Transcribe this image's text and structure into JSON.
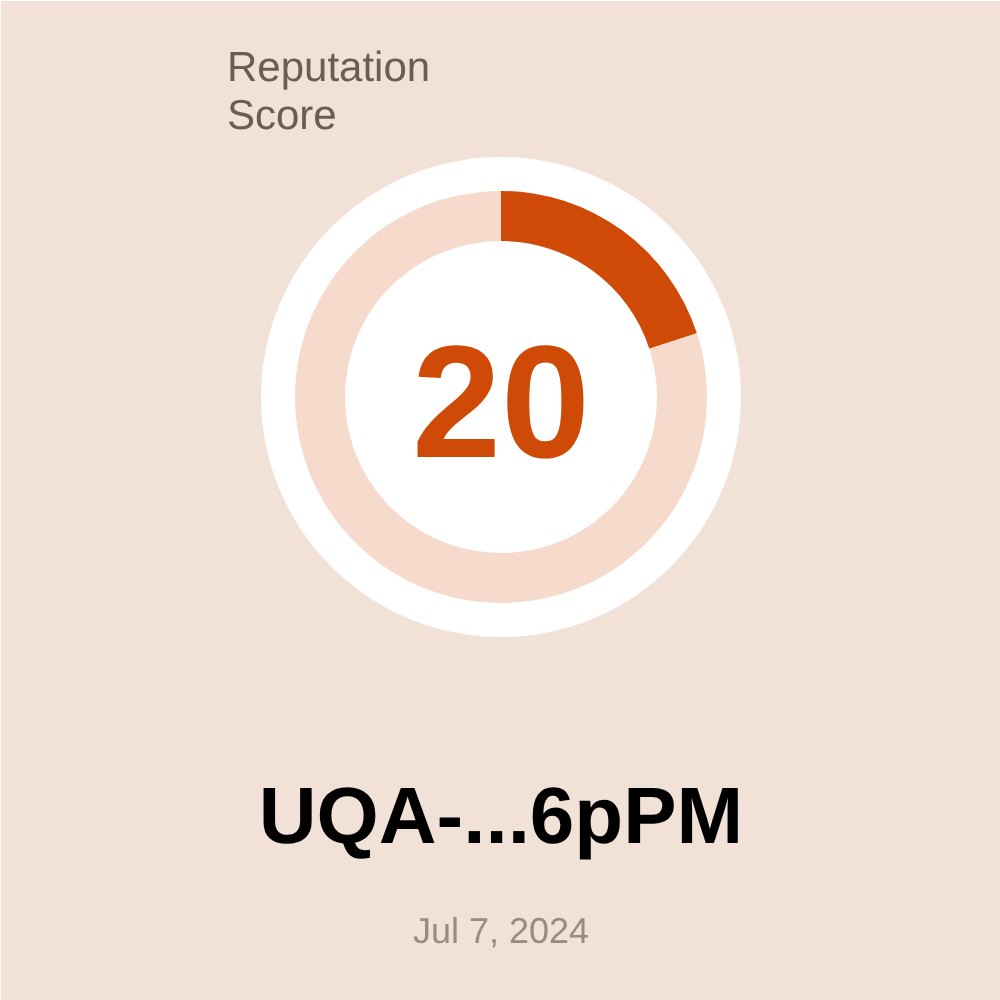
{
  "chart_data": {
    "type": "donut",
    "title": "Reputation Score",
    "categories": [
      null,
      null
    ],
    "values": [
      20,
      80
    ],
    "colors": [
      "#cf4a07",
      "#f6dbcd"
    ],
    "annotations": [
      "20",
      "UQA-...6pPM",
      "Jul 7, 2024"
    ]
  }
}
